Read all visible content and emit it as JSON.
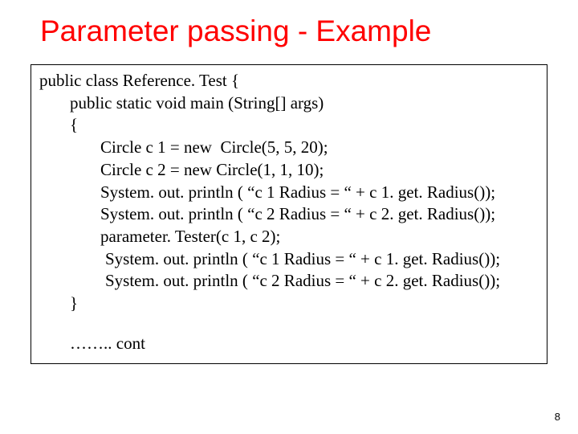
{
  "title": "Parameter passing - Example",
  "code": {
    "l0": "public class Reference. Test {",
    "l1": "public static void main (String[] args)",
    "l2": "{",
    "l3": "Circle c 1 = new  Circle(5, 5, 20);",
    "l4": "Circle c 2 = new Circle(1, 1, 10);",
    "l5": "System. out. println ( “c 1 Radius = “ + c 1. get. Radius());",
    "l6": "System. out. println ( “c 2 Radius = “ + c 2. get. Radius());",
    "l7": "parameter. Tester(c 1, c 2);",
    "l8": "System. out. println ( “c 1 Radius = “ + c 1. get. Radius());",
    "l9": "System. out. println ( “c 2 Radius = “ + c 2. get. Radius());",
    "l10": "}",
    "cont": "…….. cont"
  },
  "page_number": "8",
  "colors": {
    "title": "#ff0000",
    "text": "#000000",
    "border": "#000000",
    "background": "#ffffff"
  }
}
